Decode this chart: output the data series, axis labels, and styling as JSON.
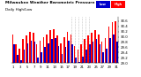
{
  "title": "Milwaukee Weather Barometric Pressure",
  "subtitle": "Daily High/Low",
  "high_color": "#ff0000",
  "low_color": "#0000cc",
  "background_color": "#ffffff",
  "ylim": [
    29.0,
    30.75
  ],
  "yticks": [
    29.0,
    29.2,
    29.4,
    29.6,
    29.8,
    30.0,
    30.2,
    30.4,
    30.6
  ],
  "highs": [
    30.1,
    29.72,
    29.55,
    29.9,
    30.05,
    30.2,
    30.15,
    29.7,
    29.85,
    30.0,
    30.1,
    30.25,
    30.3,
    30.05,
    29.75,
    30.0,
    30.2,
    30.1,
    29.65,
    29.5,
    29.7,
    29.9,
    30.05,
    30.15,
    30.25,
    30.1,
    29.8,
    29.95,
    30.4,
    30.55,
    30.6
  ],
  "lows": [
    29.7,
    29.3,
    29.1,
    29.5,
    29.75,
    29.85,
    29.8,
    29.2,
    29.4,
    29.6,
    29.75,
    29.9,
    29.95,
    29.65,
    29.35,
    29.6,
    29.85,
    29.7,
    29.2,
    29.05,
    29.25,
    29.5,
    29.7,
    29.8,
    29.9,
    29.7,
    29.4,
    29.55,
    29.95,
    30.1,
    29.8
  ],
  "dotted_day_indices": [
    17,
    18,
    19,
    20,
    21,
    22
  ],
  "n_days": 31,
  "xtick_positions": [
    0,
    2,
    4,
    6,
    8,
    10,
    12,
    14,
    16,
    18,
    20,
    22,
    24,
    26,
    28,
    30
  ],
  "xtick_labels": [
    "1",
    "3",
    "5",
    "7",
    "9",
    "11",
    "13",
    "15",
    "17",
    "19",
    "21",
    "23",
    "25",
    "27",
    "29",
    "31"
  ]
}
